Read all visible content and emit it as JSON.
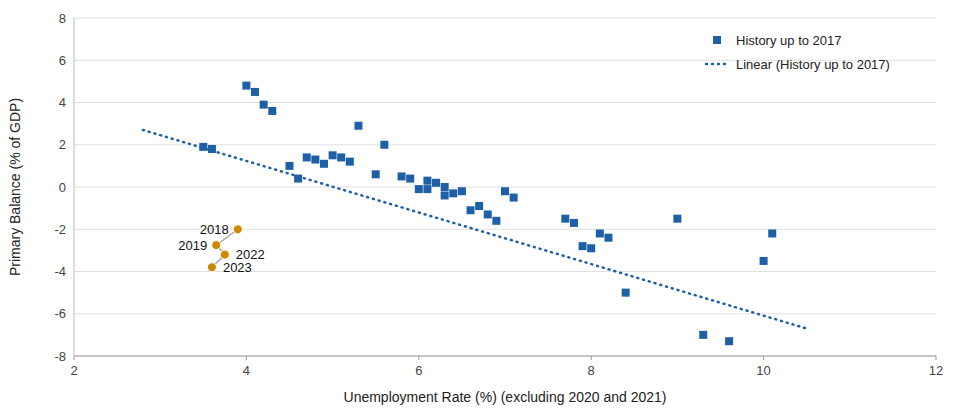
{
  "chart_data": {
    "type": "scatter",
    "xlabel": "Unemployment Rate (%) (excluding 2020 and 2021)",
    "ylabel": "Primary Balance (% of GDP)",
    "xlim": [
      2,
      12
    ],
    "ylim": [
      -8,
      8
    ],
    "xticks": [
      2,
      4,
      6,
      8,
      10,
      12
    ],
    "yticks": [
      -8,
      -6,
      -4,
      -2,
      0,
      2,
      4,
      6,
      8
    ],
    "grid": true,
    "legend": "upper right",
    "series": [
      {
        "name": "History up to 2017",
        "type": "scatter",
        "marker": "square",
        "color": "#1F5FA6",
        "x": [
          3.5,
          3.6,
          4.0,
          4.1,
          4.2,
          4.3,
          4.5,
          4.6,
          4.7,
          4.8,
          4.9,
          5.0,
          5.1,
          5.2,
          5.3,
          5.5,
          5.6,
          5.8,
          5.9,
          6.0,
          6.1,
          6.2,
          6.1,
          6.3,
          6.3,
          6.4,
          6.5,
          6.6,
          6.7,
          6.8,
          6.9,
          7.0,
          7.1,
          7.7,
          7.8,
          7.9,
          8.0,
          8.1,
          8.2,
          8.4,
          9.0,
          9.3,
          9.6,
          10.0,
          10.1
        ],
        "values": [
          1.9,
          1.8,
          4.8,
          4.5,
          3.9,
          3.6,
          1.0,
          0.4,
          1.4,
          1.3,
          1.1,
          1.5,
          1.4,
          1.2,
          2.9,
          0.6,
          2.0,
          0.5,
          0.4,
          -0.1,
          0.3,
          0.2,
          -0.1,
          0.0,
          -0.4,
          -0.3,
          -0.2,
          -1.1,
          -0.9,
          -1.3,
          -1.6,
          -0.2,
          -0.5,
          -1.5,
          -1.7,
          -2.8,
          -2.9,
          -2.2,
          -2.4,
          -5.0,
          -1.5,
          -7.0,
          -7.3,
          -3.5,
          -2.2
        ]
      },
      {
        "name": "Linear (History up to 2017)",
        "type": "line",
        "line_style": "dotted",
        "color": "#1F5FA6",
        "x": [
          2.8,
          10.5
        ],
        "values": [
          2.7,
          -6.7
        ]
      },
      {
        "type": "line",
        "marker": "circle",
        "color": "#CC8800",
        "x": [
          3.9,
          3.65,
          3.75,
          3.6
        ],
        "values": [
          -2.0,
          -2.75,
          -3.2,
          -3.8
        ],
        "labels": [
          "2018",
          "2019",
          "2022",
          "2023"
        ]
      }
    ]
  }
}
